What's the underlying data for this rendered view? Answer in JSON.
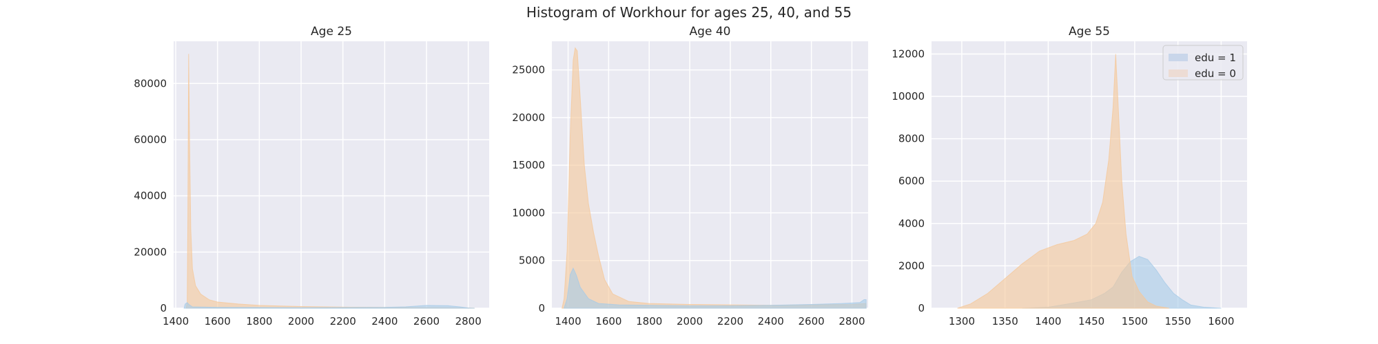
{
  "figure": {
    "suptitle": "Histogram of Workhour for ages 25, 40, and 55"
  },
  "colors": {
    "background": "#EAEAF2",
    "grid": "#FFFFFF",
    "edu1": "#A6CBE7",
    "edu0": "#F5C89A",
    "edu1_legend": "#C9D6EA",
    "edu0_legend": "#EDDCD4"
  },
  "chart_data": [
    {
      "type": "histogram",
      "title": "Age 25",
      "xlim": [
        1390,
        2900
      ],
      "ylim": [
        0,
        95000
      ],
      "xticks": [
        1400,
        1600,
        1800,
        2000,
        2200,
        2400,
        2600,
        2800
      ],
      "yticks": [
        0,
        20000,
        40000,
        60000,
        80000
      ],
      "grid": true,
      "legend": null,
      "series": [
        {
          "name": "edu = 0",
          "color": "#F5C89A",
          "opacity": 0.6,
          "points": [
            [
              1450,
              0
            ],
            [
              1455,
              2000
            ],
            [
              1458,
              30000
            ],
            [
              1462,
              90500
            ],
            [
              1466,
              60000
            ],
            [
              1472,
              28000
            ],
            [
              1480,
              14000
            ],
            [
              1495,
              8000
            ],
            [
              1520,
              5000
            ],
            [
              1560,
              3000
            ],
            [
              1600,
              2200
            ],
            [
              1700,
              1500
            ],
            [
              1800,
              1000
            ],
            [
              1900,
              800
            ],
            [
              2000,
              600
            ],
            [
              2200,
              400
            ],
            [
              2400,
              300
            ],
            [
              2600,
              200
            ],
            [
              2800,
              100
            ],
            [
              2830,
              0
            ]
          ]
        },
        {
          "name": "edu = 1",
          "color": "#A6CBE7",
          "opacity": 0.6,
          "points": [
            [
              1440,
              0
            ],
            [
              1445,
              1500
            ],
            [
              1455,
              2000
            ],
            [
              1465,
              1200
            ],
            [
              1480,
              500
            ],
            [
              1600,
              300
            ],
            [
              2000,
              200
            ],
            [
              2400,
              300
            ],
            [
              2500,
              500
            ],
            [
              2600,
              1000
            ],
            [
              2700,
              900
            ],
            [
              2760,
              500
            ],
            [
              2800,
              100
            ],
            [
              2830,
              0
            ]
          ]
        }
      ]
    },
    {
      "type": "histogram",
      "title": "Age 40",
      "xlim": [
        1320,
        2880
      ],
      "ylim": [
        0,
        28000
      ],
      "xticks": [
        1400,
        1600,
        1800,
        2000,
        2200,
        2400,
        2600,
        2800
      ],
      "yticks": [
        0,
        5000,
        10000,
        15000,
        20000,
        25000
      ],
      "grid": true,
      "legend": null,
      "series": [
        {
          "name": "edu = 0",
          "color": "#F5C89A",
          "opacity": 0.6,
          "points": [
            [
              1370,
              0
            ],
            [
              1380,
              1000
            ],
            [
              1395,
              6000
            ],
            [
              1410,
              18000
            ],
            [
              1425,
              26000
            ],
            [
              1435,
              27300
            ],
            [
              1445,
              27000
            ],
            [
              1460,
              22000
            ],
            [
              1480,
              15000
            ],
            [
              1500,
              11000
            ],
            [
              1525,
              8000
            ],
            [
              1550,
              5500
            ],
            [
              1580,
              3000
            ],
            [
              1620,
              1500
            ],
            [
              1700,
              700
            ],
            [
              1800,
              500
            ],
            [
              2000,
              400
            ],
            [
              2200,
              350
            ],
            [
              2400,
              300
            ],
            [
              2600,
              350
            ],
            [
              2800,
              400
            ],
            [
              2870,
              500
            ],
            [
              2870,
              0
            ]
          ]
        },
        {
          "name": "edu = 1",
          "color": "#A6CBE7",
          "opacity": 0.6,
          "points": [
            [
              1380,
              0
            ],
            [
              1395,
              1000
            ],
            [
              1410,
              3500
            ],
            [
              1425,
              4200
            ],
            [
              1440,
              3500
            ],
            [
              1460,
              2200
            ],
            [
              1500,
              1000
            ],
            [
              1550,
              500
            ],
            [
              1650,
              350
            ],
            [
              1800,
              300
            ],
            [
              2000,
              250
            ],
            [
              2200,
              250
            ],
            [
              2400,
              300
            ],
            [
              2600,
              400
            ],
            [
              2750,
              500
            ],
            [
              2840,
              600
            ],
            [
              2860,
              900
            ],
            [
              2870,
              900
            ],
            [
              2870,
              0
            ]
          ]
        }
      ]
    },
    {
      "type": "histogram",
      "title": "Age 55",
      "xlim": [
        1265,
        1630
      ],
      "ylim": [
        0,
        12600
      ],
      "xticks": [
        1300,
        1350,
        1400,
        1450,
        1500,
        1550,
        1600
      ],
      "yticks": [
        0,
        2000,
        4000,
        6000,
        8000,
        10000,
        12000
      ],
      "grid": true,
      "legend": "top-right",
      "series": [
        {
          "name": "edu = 1",
          "color": "#A6CBE7",
          "opacity": 0.6,
          "points": [
            [
              1370,
              0
            ],
            [
              1400,
              50
            ],
            [
              1430,
              250
            ],
            [
              1450,
              400
            ],
            [
              1465,
              700
            ],
            [
              1475,
              1000
            ],
            [
              1485,
              1700
            ],
            [
              1495,
              2200
            ],
            [
              1505,
              2450
            ],
            [
              1515,
              2300
            ],
            [
              1525,
              1800
            ],
            [
              1535,
              1200
            ],
            [
              1545,
              700
            ],
            [
              1555,
              400
            ],
            [
              1565,
              150
            ],
            [
              1580,
              50
            ],
            [
              1600,
              0
            ]
          ]
        },
        {
          "name": "edu = 0",
          "color": "#F5C89A",
          "opacity": 0.6,
          "points": [
            [
              1295,
              0
            ],
            [
              1310,
              200
            ],
            [
              1330,
              700
            ],
            [
              1350,
              1400
            ],
            [
              1370,
              2100
            ],
            [
              1390,
              2700
            ],
            [
              1410,
              3000
            ],
            [
              1430,
              3200
            ],
            [
              1445,
              3500
            ],
            [
              1455,
              4000
            ],
            [
              1463,
              5000
            ],
            [
              1470,
              7000
            ],
            [
              1475,
              9500
            ],
            [
              1478,
              12000
            ],
            [
              1481,
              9500
            ],
            [
              1485,
              6000
            ],
            [
              1490,
              3500
            ],
            [
              1497,
              1500
            ],
            [
              1505,
              800
            ],
            [
              1515,
              300
            ],
            [
              1525,
              100
            ],
            [
              1540,
              0
            ]
          ]
        }
      ]
    }
  ]
}
